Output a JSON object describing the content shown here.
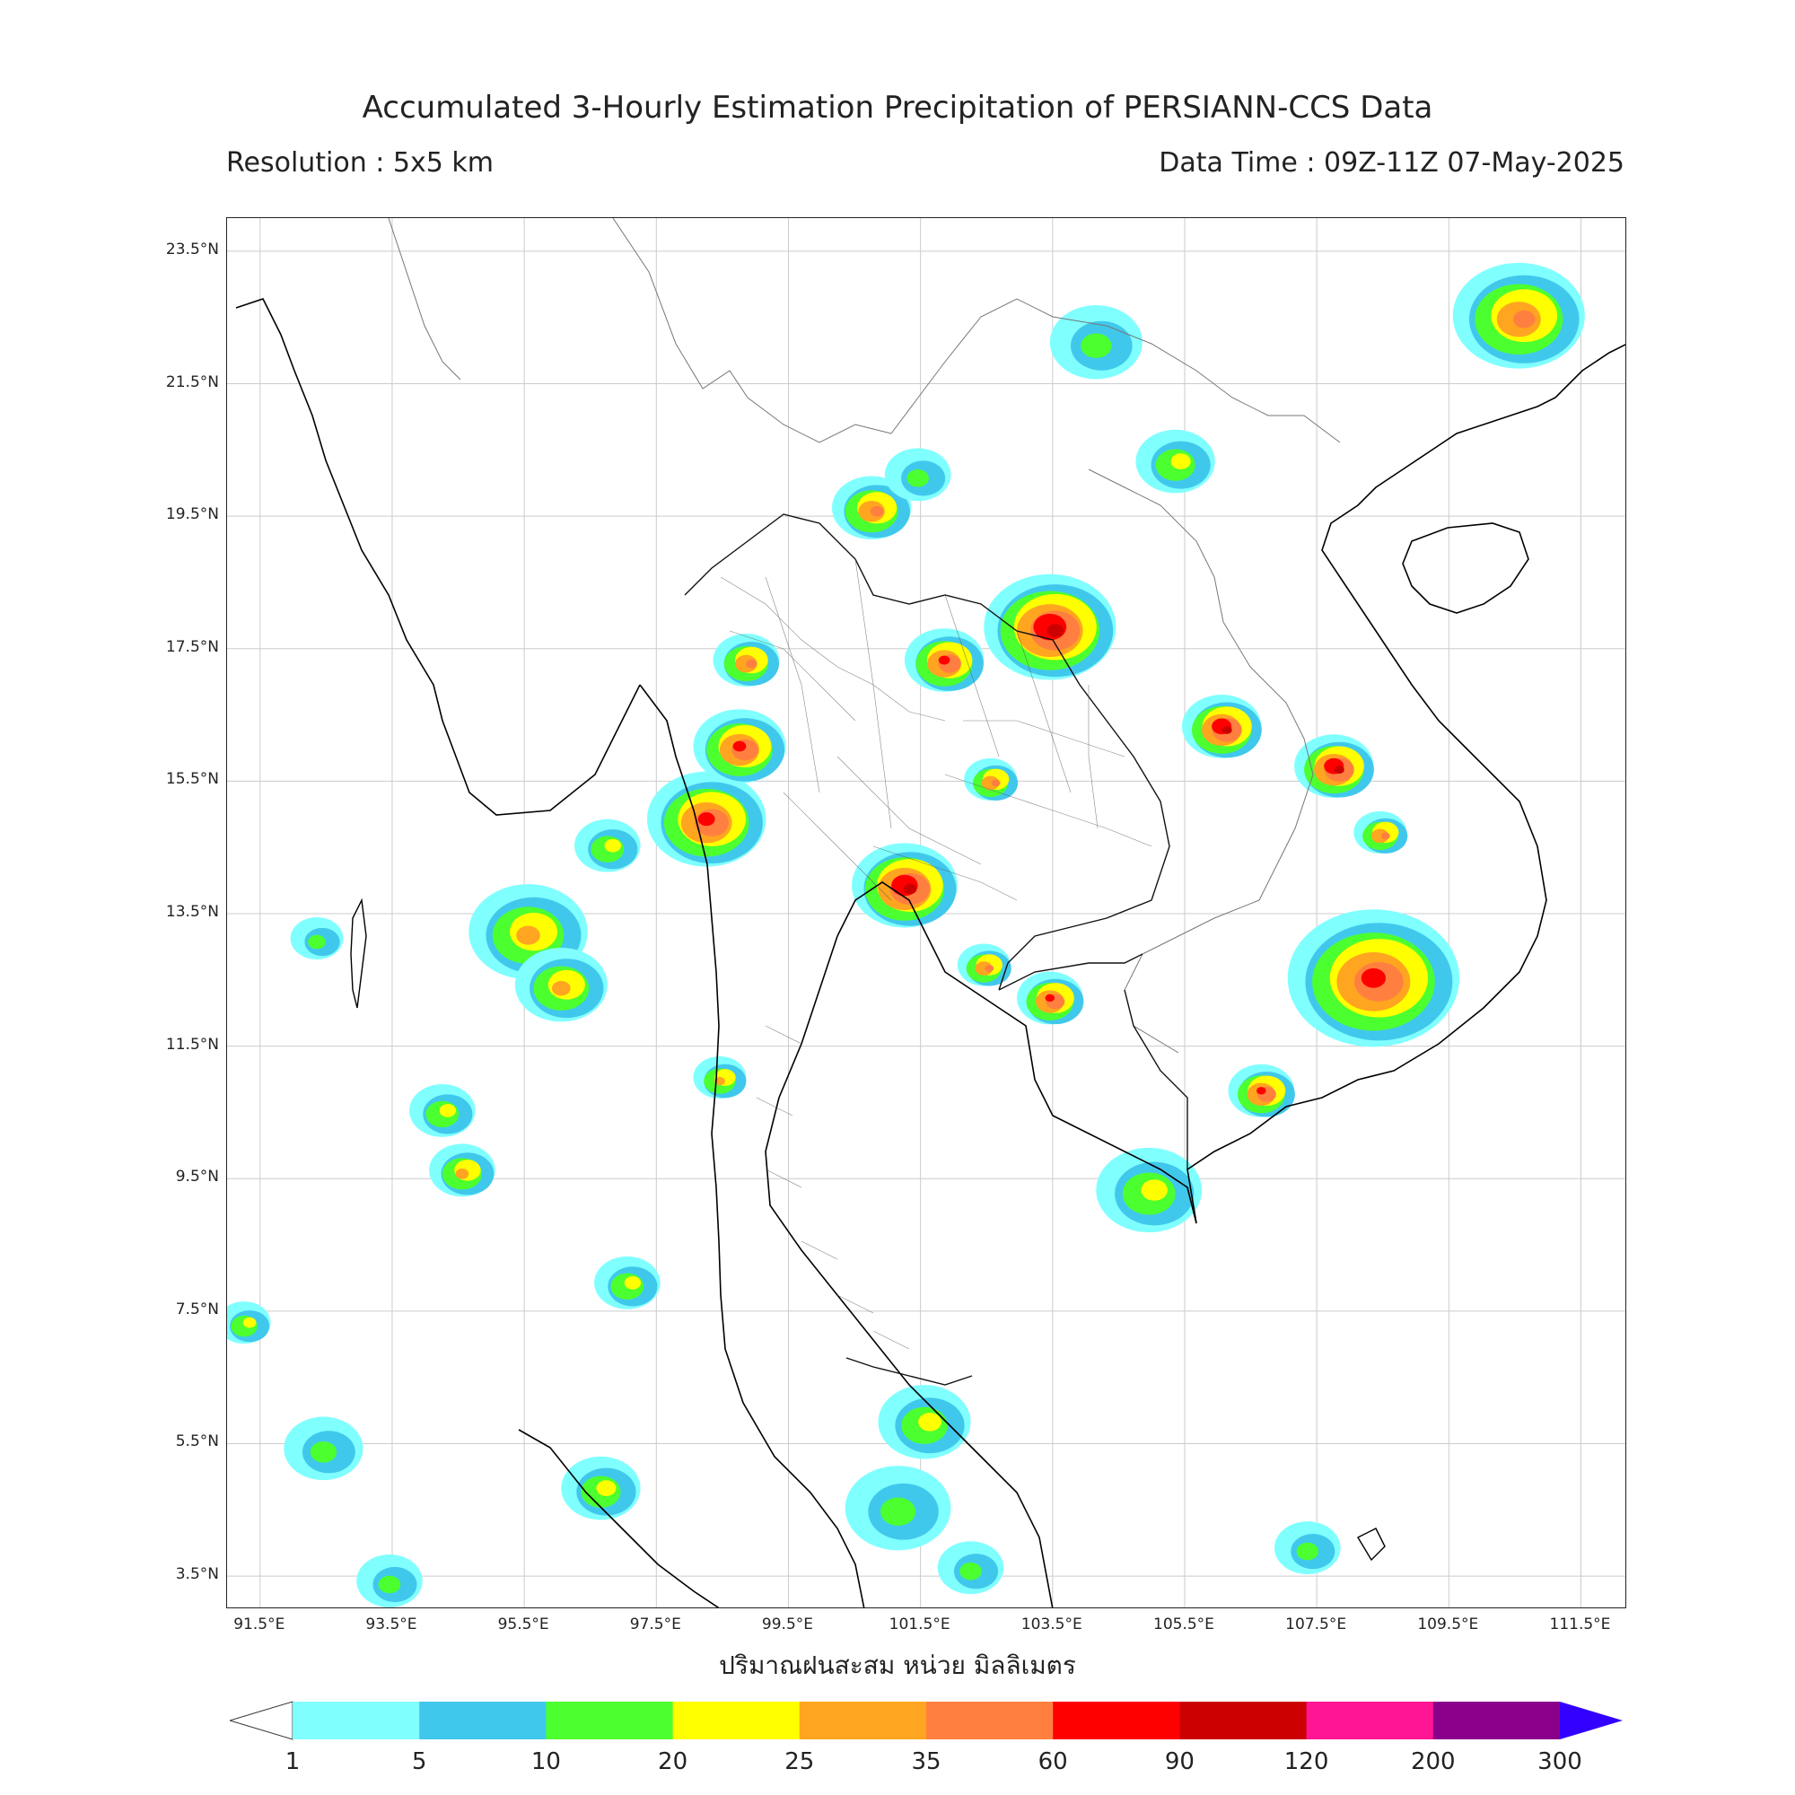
{
  "title": "Accumulated 3-Hourly Estimation Precipitation of PERSIANN-CCS Data",
  "resolution": "Resolution : 5x5 km",
  "data_time": "Data Time : 09Z-11Z 07-May-2025",
  "axis_label": "ปริมาณฝนสะสม หน่วย มิลลิเมตร",
  "map": {
    "lat_ticks": [
      "23.5°N",
      "21.5°N",
      "19.5°N",
      "17.5°N",
      "15.5°N",
      "13.5°N",
      "11.5°N",
      "9.5°N",
      "7.5°N",
      "5.5°N",
      "3.5°N"
    ],
    "lon_ticks": [
      "91.5°E",
      "93.5°E",
      "95.5°E",
      "97.5°E",
      "99.5°E",
      "101.5°E",
      "103.5°E",
      "105.5°E",
      "107.5°E",
      "109.5°E",
      "111.5°E"
    ],
    "lat_range": [
      3.0,
      24.0
    ],
    "lon_range": [
      91.0,
      112.2
    ],
    "grid": true,
    "rain_cells": [
      {
        "lon": 95.6,
        "lat": 13.2,
        "r": 0.9,
        "level": 4
      },
      {
        "lon": 96.1,
        "lat": 12.4,
        "r": 0.7,
        "level": 4
      },
      {
        "lon": 96.8,
        "lat": 14.5,
        "r": 0.5,
        "level": 3
      },
      {
        "lon": 98.3,
        "lat": 14.9,
        "r": 0.9,
        "level": 6
      },
      {
        "lon": 98.8,
        "lat": 16.0,
        "r": 0.7,
        "level": 6
      },
      {
        "lon": 98.9,
        "lat": 17.3,
        "r": 0.5,
        "level": 5
      },
      {
        "lon": 98.5,
        "lat": 11.0,
        "r": 0.4,
        "level": 4
      },
      {
        "lon": 101.3,
        "lat": 13.9,
        "r": 0.8,
        "level": 7
      },
      {
        "lon": 103.5,
        "lat": 17.8,
        "r": 1.0,
        "level": 7
      },
      {
        "lon": 101.9,
        "lat": 17.3,
        "r": 0.6,
        "level": 6
      },
      {
        "lon": 106.1,
        "lat": 16.3,
        "r": 0.6,
        "level": 7
      },
      {
        "lon": 107.8,
        "lat": 15.7,
        "r": 0.6,
        "level": 7
      },
      {
        "lon": 108.5,
        "lat": 14.7,
        "r": 0.4,
        "level": 5
      },
      {
        "lon": 108.4,
        "lat": 12.5,
        "r": 1.3,
        "level": 6
      },
      {
        "lon": 106.7,
        "lat": 10.8,
        "r": 0.5,
        "level": 6
      },
      {
        "lon": 103.5,
        "lat": 12.2,
        "r": 0.5,
        "level": 6
      },
      {
        "lon": 102.5,
        "lat": 12.7,
        "r": 0.4,
        "level": 5
      },
      {
        "lon": 105.0,
        "lat": 9.3,
        "r": 0.8,
        "level": 3
      },
      {
        "lon": 105.4,
        "lat": 20.3,
        "r": 0.6,
        "level": 3
      },
      {
        "lon": 104.2,
        "lat": 22.1,
        "r": 0.7,
        "level": 2
      },
      {
        "lon": 110.6,
        "lat": 22.5,
        "r": 1.0,
        "level": 5
      },
      {
        "lon": 100.8,
        "lat": 19.6,
        "r": 0.6,
        "level": 5
      },
      {
        "lon": 101.5,
        "lat": 20.1,
        "r": 0.5,
        "level": 2
      },
      {
        "lon": 101.6,
        "lat": 5.8,
        "r": 0.7,
        "level": 3
      },
      {
        "lon": 101.2,
        "lat": 4.5,
        "r": 0.8,
        "level": 2
      },
      {
        "lon": 96.7,
        "lat": 4.8,
        "r": 0.6,
        "level": 3
      },
      {
        "lon": 94.6,
        "lat": 9.6,
        "r": 0.5,
        "level": 4
      },
      {
        "lon": 94.3,
        "lat": 10.5,
        "r": 0.5,
        "level": 3
      },
      {
        "lon": 92.4,
        "lat": 13.1,
        "r": 0.4,
        "level": 2
      },
      {
        "lon": 107.4,
        "lat": 3.9,
        "r": 0.5,
        "level": 2
      },
      {
        "lon": 97.1,
        "lat": 7.9,
        "r": 0.5,
        "level": 3
      },
      {
        "lon": 102.6,
        "lat": 15.5,
        "r": 0.4,
        "level": 5
      },
      {
        "lon": 91.3,
        "lat": 7.3,
        "r": 0.4,
        "level": 3
      },
      {
        "lon": 92.5,
        "lat": 5.4,
        "r": 0.6,
        "level": 2
      },
      {
        "lon": 93.5,
        "lat": 3.4,
        "r": 0.5,
        "level": 2
      },
      {
        "lon": 102.3,
        "lat": 3.6,
        "r": 0.5,
        "level": 2
      }
    ]
  },
  "colorbar": {
    "colors": [
      "#80ffff",
      "#40c8ec",
      "#4cff2f",
      "#ffff00",
      "#ffa520",
      "#ff7f40",
      "#ff0000",
      "#cc0000",
      "#ff1493",
      "#8b008b"
    ],
    "extend_max_color": "#3300ff",
    "labels": [
      "1",
      "5",
      "10",
      "20",
      "25",
      "35",
      "60",
      "90",
      "120",
      "200",
      "300"
    ]
  },
  "colors": {
    "coast": "#000000",
    "border": "#6a6a6a",
    "grid": "#cccccc"
  }
}
